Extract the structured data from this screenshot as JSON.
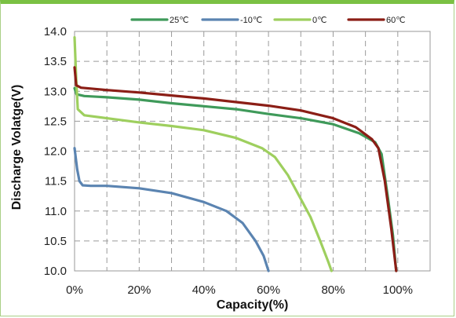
{
  "chart_data": {
    "type": "line",
    "title": "",
    "xlabel": "Capacity(%)",
    "ylabel": "Discharge Volatge(V)",
    "xlim": [
      0,
      110
    ],
    "ylim": [
      10.0,
      14.0
    ],
    "x_ticks": [
      {
        "value": 0,
        "label": "0%"
      },
      {
        "value": 20,
        "label": "20%"
      },
      {
        "value": 40,
        "label": "40%"
      },
      {
        "value": 60,
        "label": "60%"
      },
      {
        "value": 80,
        "label": "80%"
      },
      {
        "value": 100,
        "label": "100%"
      }
    ],
    "y_ticks": [
      {
        "value": 14.0,
        "label": "14.0"
      },
      {
        "value": 13.5,
        "label": "13.5"
      },
      {
        "value": 13.0,
        "label": "13.0"
      },
      {
        "value": 12.5,
        "label": "12.5"
      },
      {
        "value": 12.0,
        "label": "12.0"
      },
      {
        "value": 11.5,
        "label": "11.5"
      },
      {
        "value": 11.0,
        "label": "11.0"
      },
      {
        "value": 10.5,
        "label": "10.5"
      },
      {
        "value": 10.0,
        "label": "10.0"
      }
    ],
    "grid": true,
    "grid_style": "dashed",
    "legend_position": "top",
    "series": [
      {
        "name": "25℃",
        "color": "#3f9a5a",
        "points": [
          [
            0,
            13.05
          ],
          [
            0.6,
            12.95
          ],
          [
            3,
            12.92
          ],
          [
            10,
            12.9
          ],
          [
            20,
            12.86
          ],
          [
            30,
            12.8
          ],
          [
            40,
            12.75
          ],
          [
            50,
            12.7
          ],
          [
            60,
            12.62
          ],
          [
            70,
            12.55
          ],
          [
            80,
            12.45
          ],
          [
            88,
            12.3
          ],
          [
            93,
            12.15
          ],
          [
            95,
            11.95
          ],
          [
            97,
            11.2
          ],
          [
            98.5,
            10.6
          ],
          [
            99.5,
            10.0
          ]
        ]
      },
      {
        "name": "-10℃",
        "color": "#5b84b1",
        "points": [
          [
            0,
            12.05
          ],
          [
            0.8,
            11.7
          ],
          [
            1.5,
            11.5
          ],
          [
            2.5,
            11.43
          ],
          [
            5,
            11.42
          ],
          [
            10,
            11.42
          ],
          [
            20,
            11.38
          ],
          [
            30,
            11.3
          ],
          [
            40,
            11.15
          ],
          [
            47,
            11.0
          ],
          [
            52,
            10.8
          ],
          [
            56,
            10.5
          ],
          [
            58.5,
            10.25
          ],
          [
            60,
            10.0
          ]
        ]
      },
      {
        "name": "0℃",
        "color": "#9ecf5e",
        "points": [
          [
            0,
            13.9
          ],
          [
            0.5,
            13.2
          ],
          [
            1,
            12.7
          ],
          [
            3,
            12.6
          ],
          [
            10,
            12.55
          ],
          [
            20,
            12.48
          ],
          [
            30,
            12.42
          ],
          [
            40,
            12.35
          ],
          [
            50,
            12.22
          ],
          [
            58,
            12.05
          ],
          [
            62,
            11.9
          ],
          [
            66,
            11.6
          ],
          [
            70,
            11.2
          ],
          [
            73,
            10.9
          ],
          [
            76,
            10.5
          ],
          [
            78.5,
            10.15
          ],
          [
            79.5,
            10.0
          ]
        ]
      },
      {
        "name": "60℃",
        "color": "#8b1e16",
        "points": [
          [
            0,
            13.4
          ],
          [
            0.5,
            13.1
          ],
          [
            2,
            13.06
          ],
          [
            10,
            13.02
          ],
          [
            20,
            12.98
          ],
          [
            30,
            12.93
          ],
          [
            40,
            12.88
          ],
          [
            50,
            12.82
          ],
          [
            60,
            12.76
          ],
          [
            70,
            12.68
          ],
          [
            80,
            12.55
          ],
          [
            87,
            12.4
          ],
          [
            92,
            12.2
          ],
          [
            94,
            12.05
          ],
          [
            96,
            11.5
          ],
          [
            98,
            10.7
          ],
          [
            99.5,
            10.0
          ]
        ]
      }
    ]
  }
}
